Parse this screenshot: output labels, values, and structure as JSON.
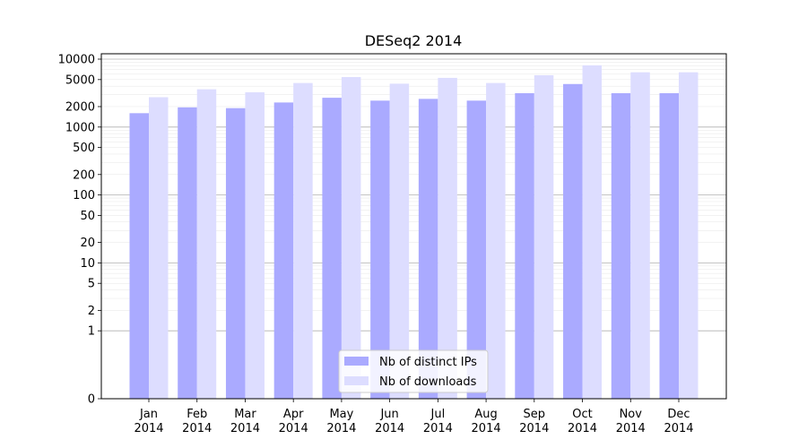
{
  "chart_data": {
    "type": "bar",
    "title": "DESeq2 2014",
    "xlabel": "",
    "ylabel": "",
    "yscale": "symlog",
    "ylim": [
      0,
      12000
    ],
    "grid": true,
    "legend_position": "bottom-center",
    "categories": [
      {
        "month": "Jan",
        "year": "2014"
      },
      {
        "month": "Feb",
        "year": "2014"
      },
      {
        "month": "Mar",
        "year": "2014"
      },
      {
        "month": "Apr",
        "year": "2014"
      },
      {
        "month": "May",
        "year": "2014"
      },
      {
        "month": "Jun",
        "year": "2014"
      },
      {
        "month": "Jul",
        "year": "2014"
      },
      {
        "month": "Aug",
        "year": "2014"
      },
      {
        "month": "Sep",
        "year": "2014"
      },
      {
        "month": "Oct",
        "year": "2014"
      },
      {
        "month": "Nov",
        "year": "2014"
      },
      {
        "month": "Dec",
        "year": "2014"
      }
    ],
    "yticks": [
      {
        "value": 0,
        "label": "0"
      },
      {
        "value": 1,
        "label": "1"
      },
      {
        "value": 2,
        "label": "2"
      },
      {
        "value": 5,
        "label": "5"
      },
      {
        "value": 10,
        "label": "10"
      },
      {
        "value": 20,
        "label": "20"
      },
      {
        "value": 50,
        "label": "50"
      },
      {
        "value": 100,
        "label": "100"
      },
      {
        "value": 200,
        "label": "200"
      },
      {
        "value": 500,
        "label": "500"
      },
      {
        "value": 1000,
        "label": "1000"
      },
      {
        "value": 2000,
        "label": "2000"
      },
      {
        "value": 5000,
        "label": "5000"
      },
      {
        "value": 10000,
        "label": "10000"
      }
    ],
    "series": [
      {
        "name": "Nb of distinct IPs",
        "color": "#aaaaff",
        "values": [
          1600,
          1950,
          1900,
          2300,
          2700,
          2450,
          2600,
          2450,
          3150,
          4300,
          3150,
          3150
        ]
      },
      {
        "name": "Nb of downloads",
        "color": "#ddddff",
        "values": [
          2750,
          3600,
          3250,
          4450,
          5450,
          4350,
          5300,
          4450,
          5800,
          8100,
          6400,
          6400
        ]
      }
    ]
  }
}
